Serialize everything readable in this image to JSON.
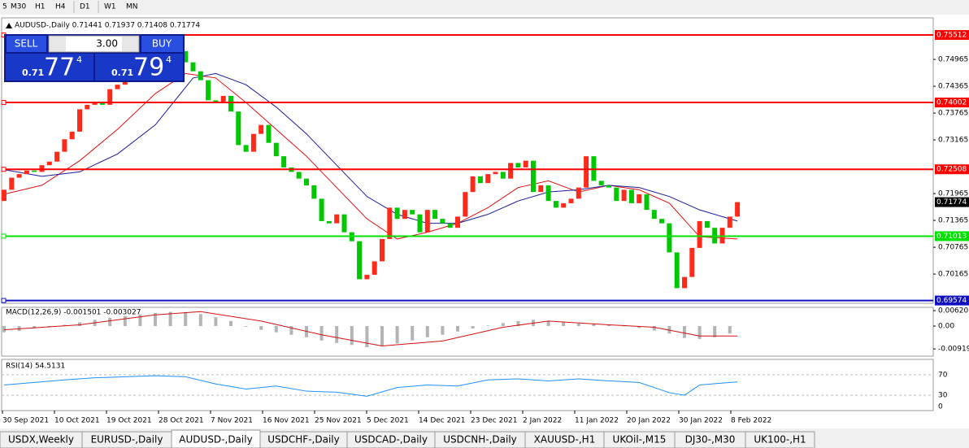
{
  "toolbar": {
    "timeframes": [
      "5",
      "M30",
      "H1",
      "H4",
      "D1",
      "W1",
      "MN"
    ]
  },
  "trade_panel": {
    "sell": "SELL",
    "buy": "BUY",
    "lot": "3.00",
    "sell_price": {
      "big": "0.71",
      "pips": "77",
      "fraction": "4"
    },
    "buy_price": {
      "big": "0.71",
      "pips": "79",
      "fraction": "4"
    }
  },
  "chart_data": {
    "type": "candlestick",
    "title": "AUDUSD-,Daily  0.71441 0.71937 0.71408 0.71774",
    "bull_color": "#ff2a1a",
    "bear_color": "#00c800",
    "open": [
      0.718,
      0.7205,
      0.7232,
      0.724,
      0.7248,
      0.7245,
      0.726,
      0.7268,
      0.729,
      0.7318,
      0.7335,
      0.7385,
      0.7395,
      0.7402,
      0.7395,
      0.743,
      0.744,
      0.7455,
      0.747,
      0.7475,
      0.749,
      0.7495,
      0.7488,
      0.7505,
      0.7515,
      0.749,
      0.747,
      0.745,
      0.7405,
      0.74,
      0.7415,
      0.738,
      0.7305,
      0.729,
      0.733,
      0.735,
      0.731,
      0.728,
      0.7255,
      0.7245,
      0.723,
      0.7215,
      0.7185,
      0.7135,
      0.713,
      0.715,
      0.711,
      0.709,
      0.7005,
      0.7015,
      0.7045,
      0.7095,
      0.7165,
      0.714,
      0.716,
      0.715,
      0.711,
      0.716,
      0.714,
      0.713,
      0.712,
      0.7145,
      0.72,
      0.7235,
      0.722,
      0.724,
      0.7245,
      0.723,
      0.7265,
      0.7255,
      0.727,
      0.72,
      0.7215,
      0.718,
      0.7165,
      0.7175,
      0.7185,
      0.721,
      0.728,
      0.7225,
      0.7215,
      0.721,
      0.718,
      0.7205,
      0.7175,
      0.7195,
      0.716,
      0.714,
      0.713,
      0.7065,
      0.6985,
      0.701,
      0.7075,
      0.7135,
      0.712,
      0.7085,
      0.712,
      0.7145
    ],
    "close": [
      0.7205,
      0.7232,
      0.724,
      0.7248,
      0.7245,
      0.726,
      0.7268,
      0.729,
      0.7318,
      0.7335,
      0.7385,
      0.7395,
      0.7402,
      0.7395,
      0.743,
      0.744,
      0.7455,
      0.747,
      0.7475,
      0.749,
      0.7495,
      0.7488,
      0.7505,
      0.7515,
      0.749,
      0.747,
      0.745,
      0.7405,
      0.74,
      0.7415,
      0.738,
      0.7305,
      0.729,
      0.733,
      0.735,
      0.731,
      0.728,
      0.7255,
      0.7245,
      0.723,
      0.7215,
      0.7185,
      0.7135,
      0.713,
      0.715,
      0.711,
      0.709,
      0.7005,
      0.7015,
      0.7045,
      0.7095,
      0.7165,
      0.714,
      0.716,
      0.715,
      0.711,
      0.716,
      0.714,
      0.713,
      0.712,
      0.7145,
      0.72,
      0.7235,
      0.722,
      0.724,
      0.7245,
      0.723,
      0.7265,
      0.7255,
      0.727,
      0.72,
      0.7215,
      0.718,
      0.7165,
      0.7175,
      0.7185,
      0.721,
      0.728,
      0.7225,
      0.7215,
      0.721,
      0.718,
      0.7205,
      0.7175,
      0.7195,
      0.716,
      0.714,
      0.713,
      0.7065,
      0.6985,
      0.701,
      0.7075,
      0.7135,
      0.712,
      0.7085,
      0.712,
      0.7145,
      0.71774
    ],
    "moving_averages": [
      {
        "color": "#e01010",
        "x": [
          0,
          5,
          10,
          15,
          20,
          24,
          28,
          32,
          36,
          40,
          44,
          48,
          52,
          56,
          60,
          64,
          68,
          72,
          76,
          80,
          84,
          88,
          92,
          97
        ],
        "values": [
          0.7195,
          0.7215,
          0.727,
          0.734,
          0.742,
          0.7465,
          0.7455,
          0.74,
          0.734,
          0.728,
          0.721,
          0.714,
          0.7095,
          0.711,
          0.713,
          0.7165,
          0.721,
          0.7225,
          0.72,
          0.7215,
          0.7205,
          0.7175,
          0.71,
          0.7095
        ]
      },
      {
        "color": "#1a1a9a",
        "x": [
          0,
          5,
          10,
          15,
          20,
          25,
          28,
          32,
          36,
          40,
          44,
          48,
          52,
          56,
          60,
          64,
          68,
          72,
          76,
          80,
          84,
          88,
          92,
          97
        ],
        "values": [
          0.725,
          0.7235,
          0.7245,
          0.7285,
          0.735,
          0.7455,
          0.7465,
          0.744,
          0.739,
          0.733,
          0.726,
          0.719,
          0.715,
          0.713,
          0.713,
          0.715,
          0.718,
          0.72,
          0.7205,
          0.7215,
          0.721,
          0.719,
          0.716,
          0.7135
        ]
      }
    ],
    "ylim": [
      0.69512,
      0.75603
    ],
    "yticks": [
      0.74965,
      0.74365,
      0.73765,
      0.73165,
      0.71965,
      0.71365,
      0.70765,
      0.70165
    ],
    "levels": [
      {
        "value": 0.75512,
        "color": "#ff0000"
      },
      {
        "value": 0.74002,
        "color": "#ff0000"
      },
      {
        "value": 0.72508,
        "color": "#ff0000"
      },
      {
        "value": 0.71013,
        "color": "#00e000"
      },
      {
        "value": 0.69574,
        "color": "#1010c0"
      }
    ],
    "last_price": 0.71774,
    "dates": [
      "30 Sep 2021",
      "10 Oct 2021",
      "19 Oct 2021",
      "28 Oct 2021",
      "7 Nov 2021",
      "16 Nov 2021",
      "25 Nov 2021",
      "5 Dec 2021",
      "14 Dec 2021",
      "23 Dec 2021",
      "2 Jan 2022",
      "11 Jan 2022",
      "20 Jan 2022",
      "30 Jan 2022",
      "8 Feb 2022"
    ],
    "macd": {
      "title": "MACD(12,26,9) -0.001501 -0.003027",
      "ylim": [
        -0.01208,
        0.00751
      ],
      "yticks": [
        0.006201,
        {
          "value": 0,
          "label": "0.00"
        },
        -0.009197
      ],
      "hist_color": "#b4b4b4",
      "signal_color": "#d01010",
      "x": [
        0,
        2,
        4,
        6,
        8,
        10,
        12,
        14,
        16,
        18,
        20,
        22,
        24,
        26,
        28,
        30,
        32,
        34,
        36,
        38,
        40,
        42,
        44,
        46,
        48,
        50,
        52,
        54,
        56,
        58,
        60,
        62,
        64,
        66,
        68,
        70,
        72,
        74,
        76,
        78,
        80,
        82,
        84,
        86,
        88,
        90,
        92,
        94,
        96
      ],
      "values": [
        -0.0025,
        -0.002,
        -0.001,
        -0.0005,
        0.0005,
        0.0015,
        0.0025,
        0.0033,
        0.004,
        0.0047,
        0.0052,
        0.0057,
        0.0056,
        0.0048,
        0.0035,
        0.002,
        -0.0003,
        -0.0015,
        -0.0025,
        -0.0035,
        -0.0045,
        -0.0058,
        -0.0068,
        -0.0076,
        -0.0085,
        -0.008,
        -0.007,
        -0.0058,
        -0.0045,
        -0.0035,
        -0.0022,
        -0.001,
        0.0002,
        0.0012,
        0.002,
        0.0025,
        0.002,
        0.0015,
        0.001,
        0.0008,
        0.0004,
        0.0,
        -0.0008,
        -0.0018,
        -0.003,
        -0.0048,
        -0.0052,
        -0.0045,
        -0.003
      ],
      "signal_x": [
        0,
        10,
        20,
        26,
        34,
        42,
        50,
        58,
        66,
        72,
        80,
        86,
        92,
        97
      ],
      "signal": [
        -0.0015,
        0.0005,
        0.0045,
        0.0058,
        0.002,
        -0.0035,
        -0.008,
        -0.006,
        -0.0005,
        0.002,
        0.0005,
        -0.0005,
        -0.004,
        -0.004
      ]
    },
    "rsi": {
      "title": "RSI(14) 54.5131",
      "ylim": [
        0,
        100
      ],
      "yticks": [
        70,
        30,
        0
      ],
      "color": "#1e90ff",
      "x": [
        0,
        4,
        8,
        12,
        16,
        20,
        24,
        28,
        32,
        36,
        40,
        44,
        48,
        52,
        56,
        60,
        64,
        68,
        72,
        76,
        80,
        84,
        88,
        90,
        92,
        96,
        97
      ],
      "values": [
        50,
        55,
        60,
        64,
        66,
        68,
        66,
        52,
        42,
        48,
        38,
        36,
        28,
        45,
        50,
        48,
        60,
        62,
        58,
        62,
        58,
        55,
        35,
        30,
        50,
        55,
        56
      ]
    }
  },
  "tabs": [
    "USDX,Weekly",
    "EURUSD-,Daily",
    "AUDUSD-,Daily",
    "USDCHF-,Daily",
    "USDCAD-,Daily",
    "USDCNH-,Daily",
    "XAUUSD-,H1",
    "UKOil-,M15",
    "DJ30-,M30",
    "UK100-,H1"
  ],
  "active_tab": 2
}
